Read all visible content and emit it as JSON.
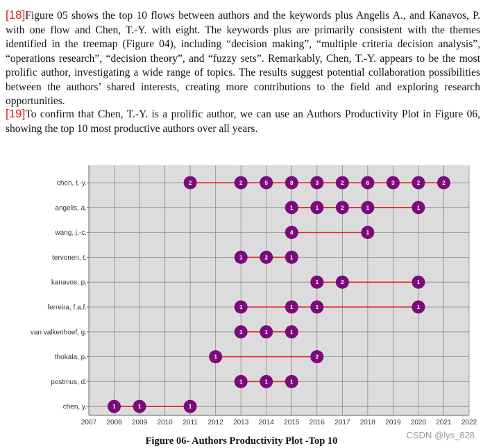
{
  "paragraphs": [
    {
      "ref": "[18]",
      "text": "Figure 05 shows the top 10 flows between authors and the keywords plus Angelis A., and Kanavos, P. with one flow and Chen, T.-Y. with eight. The keywords plus are primarily consistent with the themes identified in the treemap (Figure 04), including “decision making”, “multiple criteria decision analysis”, “operations research”, “decision theory”, and “fuzzy sets”. Remarkably, Chen, T.-Y. appears to be the most prolific author, investigating a wide range of topics. The results suggest potential collaboration possibilities between the authors’ shared interests, creating more contributions to the field and exploring research opportunities."
    },
    {
      "ref": "[19]",
      "text": "To confirm that Chen, T.-Y. is a prolific author, we can use an Authors Productivity Plot in Figure 06, showing the top 10 most productive authors over all years."
    }
  ],
  "caption": "Figure 06- Authors Productivity Plot -Top 10",
  "watermark": "CSDN @lys_828",
  "colors": {
    "dot": "#7b0a7b",
    "line": "#e0211b",
    "plot_bg": "#dcdcdc",
    "grid": "#8a8a8a"
  },
  "chart_data": {
    "type": "scatter",
    "title": "",
    "xlabel": "",
    "ylabel": "",
    "xlim": [
      2007,
      2022
    ],
    "x_ticks": [
      "2007",
      "2008",
      "2009",
      "2010",
      "2011",
      "2012",
      "2013",
      "2014",
      "2015",
      "2016",
      "2017",
      "2018",
      "2019",
      "2020",
      "2021",
      "2022"
    ],
    "grid": true,
    "authors": [
      {
        "name": "chen, t.-y.",
        "points": [
          [
            2011,
            2
          ],
          [
            2013,
            2
          ],
          [
            2014,
            5
          ],
          [
            2015,
            8
          ],
          [
            2016,
            3
          ],
          [
            2017,
            2
          ],
          [
            2018,
            6
          ],
          [
            2019,
            3
          ],
          [
            2020,
            2
          ],
          [
            2021,
            2
          ]
        ]
      },
      {
        "name": "angelis, a.",
        "points": [
          [
            2015,
            1
          ],
          [
            2016,
            1
          ],
          [
            2017,
            2
          ],
          [
            2018,
            1
          ],
          [
            2020,
            1
          ]
        ]
      },
      {
        "name": "wang, j.-c.",
        "points": [
          [
            2015,
            4
          ],
          [
            2018,
            1
          ]
        ]
      },
      {
        "name": "tervonen, t.",
        "points": [
          [
            2013,
            1
          ],
          [
            2014,
            2
          ],
          [
            2015,
            1
          ]
        ]
      },
      {
        "name": "kanavos, p.",
        "points": [
          [
            2016,
            1
          ],
          [
            2017,
            2
          ],
          [
            2020,
            1
          ]
        ]
      },
      {
        "name": "ferreira, f.a.f.",
        "points": [
          [
            2013,
            1
          ],
          [
            2015,
            1
          ],
          [
            2016,
            1
          ],
          [
            2020,
            1
          ]
        ]
      },
      {
        "name": "van valkenhoef, g.",
        "points": [
          [
            2013,
            1
          ],
          [
            2014,
            1
          ],
          [
            2015,
            1
          ]
        ]
      },
      {
        "name": "thokala, p.",
        "points": [
          [
            2012,
            1
          ],
          [
            2016,
            2
          ]
        ]
      },
      {
        "name": "postmus, d.",
        "points": [
          [
            2013,
            1
          ],
          [
            2014,
            1
          ],
          [
            2015,
            1
          ]
        ]
      },
      {
        "name": "chen, y.",
        "points": [
          [
            2008,
            1
          ],
          [
            2009,
            1
          ],
          [
            2011,
            1
          ]
        ]
      }
    ]
  }
}
